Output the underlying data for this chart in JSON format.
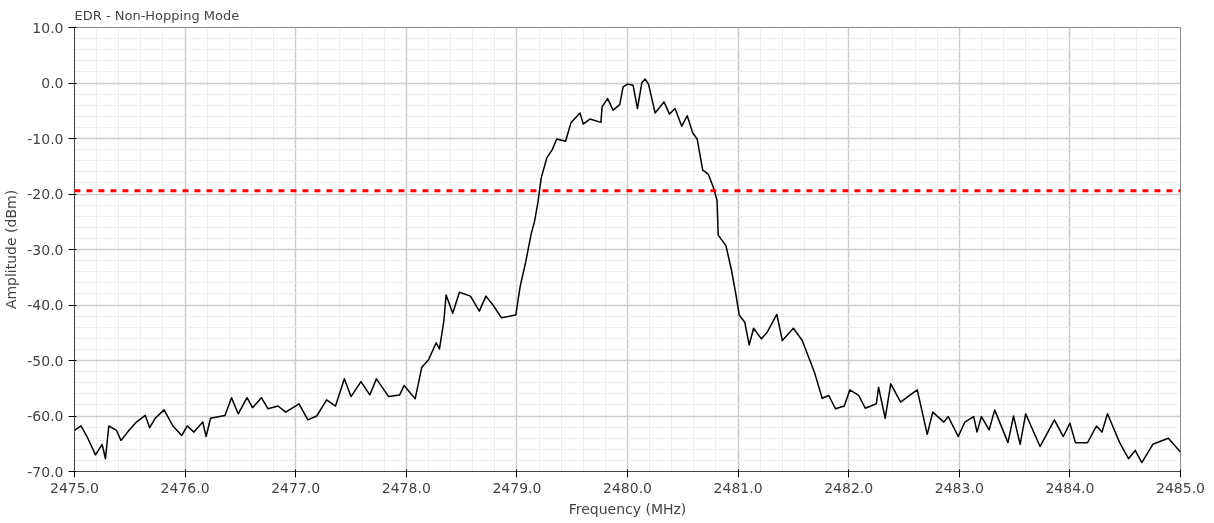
{
  "chart_data": {
    "type": "line",
    "title": "EDR - Non-Hopping Mode",
    "xlabel": "Frequency (MHz)",
    "ylabel": "Amplitude (dBm)",
    "xlim": [
      2475,
      2485
    ],
    "ylim": [
      -70,
      10
    ],
    "xticks": [
      {
        "value": 2475,
        "label": "2475.0"
      },
      {
        "value": 2476,
        "label": "2476.0"
      },
      {
        "value": 2477,
        "label": "2477.0"
      },
      {
        "value": 2478,
        "label": "2478.0"
      },
      {
        "value": 2479,
        "label": "2479.0"
      },
      {
        "value": 2480,
        "label": "2480.0"
      },
      {
        "value": 2481,
        "label": "2481.0"
      },
      {
        "value": 2482,
        "label": "2482.0"
      },
      {
        "value": 2483,
        "label": "2483.0"
      },
      {
        "value": 2484,
        "label": "2484.0"
      },
      {
        "value": 2485,
        "label": "2485.0"
      }
    ],
    "yticks": [
      {
        "value": -70,
        "label": "-70.0"
      },
      {
        "value": -60,
        "label": "-60.0"
      },
      {
        "value": -50,
        "label": "-50.0"
      },
      {
        "value": -40,
        "label": "-40.0"
      },
      {
        "value": -30,
        "label": "-30.0"
      },
      {
        "value": -20,
        "label": "-20.0"
      },
      {
        "value": -10,
        "label": "-10.0"
      },
      {
        "value": 0,
        "label": "0.0"
      },
      {
        "value": 10,
        "label": "10.0"
      }
    ],
    "grid": true,
    "marker": "none",
    "line_style": "solid",
    "ref_lines": [
      {
        "axis": "y",
        "value": -19.4,
        "color": "#ff0000",
        "line_style": "dashed"
      }
    ],
    "series": [
      {
        "color": "#000000",
        "x": [
          2475.0,
          2475.06,
          2475.12,
          2475.19,
          2475.25,
          2475.28,
          2475.31,
          2475.38,
          2475.42,
          2475.48,
          2475.56,
          2475.64,
          2475.68,
          2475.73,
          2475.81,
          2475.89,
          2475.97,
          2476.02,
          2476.08,
          2476.16,
          2476.19,
          2476.23,
          2476.36,
          2476.42,
          2476.48,
          2476.56,
          2476.61,
          2476.69,
          2476.75,
          2476.84,
          2476.91,
          2477.03,
          2477.11,
          2477.19,
          2477.28,
          2477.36,
          2477.44,
          2477.5,
          2477.59,
          2477.67,
          2477.73,
          2477.84,
          2477.94,
          2477.98,
          2478.08,
          2478.14,
          2478.2,
          2478.27,
          2478.3,
          2478.34,
          2478.36,
          2478.42,
          2478.48,
          2478.58,
          2478.66,
          2478.72,
          2478.78,
          2478.86,
          2478.94,
          2478.99,
          2479.03,
          2479.08,
          2479.13,
          2479.16,
          2479.19,
          2479.22,
          2479.27,
          2479.32,
          2479.36,
          2479.44,
          2479.49,
          2479.57,
          2479.6,
          2479.66,
          2479.76,
          2479.77,
          2479.82,
          2479.87,
          2479.93,
          2479.96,
          2480.0,
          2480.05,
          2480.09,
          2480.13,
          2480.16,
          2480.19,
          2480.25,
          2480.33,
          2480.38,
          2480.43,
          2480.49,
          2480.54,
          2480.59,
          2480.63,
          2480.68,
          2480.73,
          2480.78,
          2480.81,
          2480.82,
          2480.89,
          2480.94,
          2480.98,
          2481.01,
          2481.06,
          2481.1,
          2481.14,
          2481.21,
          2481.26,
          2481.35,
          2481.4,
          2481.5,
          2481.58,
          2481.69,
          2481.76,
          2481.82,
          2481.88,
          2481.96,
          2482.01,
          2482.09,
          2482.15,
          2482.25,
          2482.27,
          2482.33,
          2482.38,
          2482.47,
          2482.55,
          2482.62,
          2482.71,
          2482.76,
          2482.86,
          2482.9,
          2482.99,
          2483.05,
          2483.13,
          2483.16,
          2483.2,
          2483.27,
          2483.32,
          2483.44,
          2483.49,
          2483.55,
          2483.6,
          2483.73,
          2483.86,
          2483.94,
          2484.0,
          2484.05,
          2484.16,
          2484.24,
          2484.29,
          2484.34,
          2484.38,
          2484.45,
          2484.53,
          2484.59,
          2484.65,
          2484.75,
          2484.89,
          2485.0
        ],
        "values": [
          -62.6,
          -61.8,
          -64.0,
          -67.0,
          -65.1,
          -67.7,
          -61.8,
          -62.6,
          -64.4,
          -62.9,
          -61.1,
          -59.9,
          -62.1,
          -60.4,
          -58.9,
          -61.8,
          -63.5,
          -61.8,
          -62.9,
          -61.1,
          -63.7,
          -60.4,
          -59.9,
          -56.7,
          -59.6,
          -56.7,
          -58.5,
          -56.7,
          -58.7,
          -58.2,
          -59.3,
          -57.8,
          -60.7,
          -60.0,
          -57.1,
          -58.2,
          -53.3,
          -56.5,
          -53.8,
          -56.2,
          -53.3,
          -56.5,
          -56.2,
          -54.5,
          -56.9,
          -51.2,
          -49.9,
          -46.8,
          -47.9,
          -42.8,
          -38.2,
          -41.5,
          -37.7,
          -38.4,
          -41.1,
          -38.4,
          -39.9,
          -42.3,
          -42.0,
          -41.8,
          -36.6,
          -32.2,
          -27.1,
          -24.9,
          -21.5,
          -17.1,
          -13.5,
          -12.0,
          -10.1,
          -10.5,
          -7.1,
          -5.4,
          -7.4,
          -6.5,
          -7.1,
          -4.3,
          -2.8,
          -4.9,
          -3.9,
          -0.7,
          -0.2,
          -0.4,
          -4.6,
          0.1,
          0.7,
          -0.2,
          -5.4,
          -3.4,
          -5.6,
          -4.6,
          -7.8,
          -5.9,
          -9.0,
          -10.1,
          -15.7,
          -16.4,
          -19.0,
          -21.2,
          -27.4,
          -29.3,
          -33.7,
          -38.1,
          -41.8,
          -43.1,
          -47.2,
          -44.2,
          -46.1,
          -45.0,
          -41.7,
          -46.4,
          -44.2,
          -46.4,
          -52.1,
          -56.8,
          -56.3,
          -58.7,
          -58.2,
          -55.3,
          -56.3,
          -58.6,
          -57.8,
          -54.8,
          -60.4,
          -54.2,
          -57.5,
          -56.3,
          -55.3,
          -63.3,
          -59.3,
          -61.1,
          -60.1,
          -63.7,
          -61.1,
          -60.1,
          -62.9,
          -60.1,
          -62.5,
          -58.9,
          -64.8,
          -60.0,
          -65.1,
          -59.6,
          -65.5,
          -60.7,
          -63.7,
          -61.3,
          -64.8,
          -64.8,
          -61.8,
          -62.9,
          -59.6,
          -61.5,
          -64.8,
          -67.7,
          -66.2,
          -68.4,
          -65.1,
          -64.0,
          -66.5
        ]
      }
    ]
  }
}
